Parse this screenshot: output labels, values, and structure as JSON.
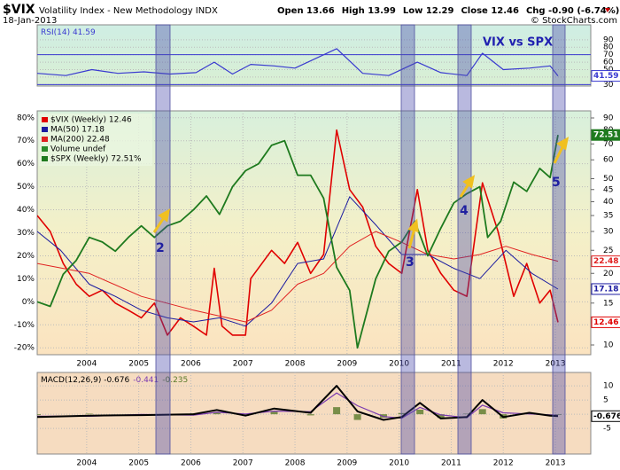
{
  "header": {
    "symbol": "$VIX",
    "name": "Volatility Index - New Methodology INDX",
    "date": "18-Jan-2013",
    "quote": [
      "Open 13.66",
      "High 13.99",
      "Low 12.29",
      "Close 12.46",
      "Chg -0.90 (-6.74%)"
    ],
    "credit": "© StockCharts.com"
  },
  "annotations": [
    "VIX vs SPX",
    "2",
    "3",
    "4",
    "5"
  ],
  "chart_data": [
    {
      "type": "line",
      "xlim": [
        2003.05,
        2013.68
      ],
      "ylim": [
        28,
        110
      ],
      "yticks": [
        30,
        40,
        50,
        60,
        70,
        80,
        90
      ],
      "ref_lines": [
        30,
        70
      ],
      "series": [
        {
          "name": "RSI(14) 41.59",
          "color": "#3a3ad0",
          "tag": true,
          "x": [
            2003.05,
            2003.6,
            2004.1,
            2004.6,
            2005.1,
            2005.6,
            2006.1,
            2006.45,
            2006.8,
            2007.15,
            2007.6,
            2008.0,
            2008.8,
            2009.3,
            2009.8,
            2010.35,
            2010.8,
            2011.3,
            2011.6,
            2012.0,
            2012.5,
            2012.9,
            2013.05
          ],
          "values": [
            45,
            42,
            50,
            45,
            47,
            44,
            46,
            60,
            44,
            57,
            55,
            52,
            78,
            45,
            42,
            60,
            46,
            42,
            72,
            50,
            52,
            55,
            41.59
          ]
        }
      ]
    },
    {
      "type": "line",
      "xlim": [
        2003.05,
        2013.68
      ],
      "xticks": [
        2004,
        2005,
        2006,
        2007,
        2008,
        2009,
        2010,
        2011,
        2012,
        2013
      ],
      "ylim": [
        -23,
        83
      ],
      "yticks": [
        {
          "value": 80,
          "label": "80%"
        },
        {
          "value": 70,
          "label": "70%"
        },
        {
          "value": 60,
          "label": "60%"
        },
        {
          "value": 50,
          "label": "50%"
        },
        {
          "value": 40,
          "label": "40%"
        },
        {
          "value": 30,
          "label": "30%"
        },
        {
          "value": 20,
          "label": "20%"
        },
        {
          "value": 10,
          "label": "10%"
        },
        {
          "value": 0,
          "label": "0%"
        },
        {
          "value": -10,
          "label": "-10%"
        },
        {
          "value": -20,
          "label": "-20%"
        }
      ],
      "y2lim": [
        9.1,
        96.4
      ],
      "y2log": true,
      "y2ticks": [
        90,
        80,
        70,
        60,
        50,
        45,
        40,
        35,
        30,
        25,
        20,
        15,
        10
      ],
      "legend_note": "Volume undef",
      "series": [
        {
          "name": "$VIX (Weekly) 12.46",
          "color": "#e00000",
          "axis": "y2",
          "tag": true,
          "width": 1.6,
          "x": [
            2003.05,
            2003.3,
            2003.55,
            2003.8,
            2004.05,
            2004.3,
            2004.55,
            2004.8,
            2005.05,
            2005.3,
            2005.55,
            2005.8,
            2006.05,
            2006.3,
            2006.45,
            2006.6,
            2006.8,
            2007.05,
            2007.15,
            2007.55,
            2007.8,
            2008.05,
            2008.3,
            2008.55,
            2008.8,
            2009.05,
            2009.3,
            2009.55,
            2009.8,
            2010.05,
            2010.35,
            2010.55,
            2010.8,
            2011.05,
            2011.3,
            2011.6,
            2011.9,
            2012.2,
            2012.45,
            2012.7,
            2012.9,
            2013.05
          ],
          "values": [
            35,
            30,
            22,
            18,
            16,
            17,
            15,
            14,
            13,
            15,
            11,
            13,
            12,
            11,
            21,
            12,
            11,
            11,
            19,
            25,
            22,
            27,
            20,
            24,
            80,
            45,
            38,
            26,
            22,
            20,
            45,
            25,
            20,
            17,
            16,
            48,
            30,
            16,
            22,
            15,
            17,
            12.46
          ]
        },
        {
          "name": "MA(50) 17.18",
          "color": "#1a1aa0",
          "axis": "y2",
          "tag": true,
          "width": 1,
          "x": [
            2003.05,
            2003.5,
            2004.05,
            2004.55,
            2005.05,
            2005.55,
            2006.05,
            2006.55,
            2007.05,
            2007.55,
            2008.05,
            2008.55,
            2009.05,
            2009.55,
            2010.05,
            2010.55,
            2011.05,
            2011.55,
            2012.05,
            2012.55,
            2013.05
          ],
          "values": [
            30,
            25,
            18,
            16,
            14,
            13,
            12.5,
            13,
            12,
            15,
            22,
            23,
            42,
            32,
            24,
            24,
            21,
            19,
            25,
            20,
            17.18
          ]
        },
        {
          "name": "MA(200) 22.48",
          "color": "#e02020",
          "axis": "y2",
          "tag": true,
          "width": 1,
          "x": [
            2003.05,
            2004.05,
            2005.05,
            2006.05,
            2007.05,
            2007.55,
            2008.05,
            2008.55,
            2009.05,
            2009.55,
            2010.05,
            2010.55,
            2011.05,
            2011.55,
            2012.05,
            2012.55,
            2013.05
          ],
          "values": [
            22,
            20,
            16,
            14,
            12.5,
            14,
            18,
            20,
            26,
            30,
            27,
            24,
            23,
            24,
            26,
            24,
            22.48
          ]
        },
        {
          "name": "$SPX (Weekly) 72.51%",
          "color": "#1e7a1e",
          "tag": true,
          "width": 1.8,
          "x": [
            2003.05,
            2003.3,
            2003.55,
            2003.8,
            2004.05,
            2004.3,
            2004.55,
            2004.8,
            2005.05,
            2005.3,
            2005.55,
            2005.8,
            2006.05,
            2006.3,
            2006.55,
            2006.8,
            2007.05,
            2007.3,
            2007.55,
            2007.8,
            2008.05,
            2008.3,
            2008.55,
            2008.8,
            2009.05,
            2009.2,
            2009.55,
            2009.8,
            2010.05,
            2010.3,
            2010.55,
            2010.8,
            2011.05,
            2011.3,
            2011.55,
            2011.7,
            2011.95,
            2012.2,
            2012.45,
            2012.7,
            2012.9,
            2013.05
          ],
          "values": [
            0,
            -2,
            12,
            18,
            28,
            26,
            22,
            28,
            33,
            28,
            33,
            35,
            40,
            46,
            38,
            50,
            57,
            60,
            68,
            70,
            55,
            55,
            45,
            15,
            5,
            -20,
            10,
            22,
            26,
            35,
            20,
            32,
            43,
            47,
            50,
            28,
            35,
            52,
            48,
            58,
            54,
            72.51
          ]
        }
      ]
    },
    {
      "type": "line",
      "xlim": [
        2003.05,
        2013.68
      ],
      "xticks": [
        2004,
        2005,
        2006,
        2007,
        2008,
        2009,
        2010,
        2011,
        2012,
        2013
      ],
      "ylim": [
        -14,
        14.7
      ],
      "yticks": [
        10,
        5,
        0,
        -5
      ],
      "series": [
        {
          "name": "-0.235",
          "color": "#5a7a2a",
          "type": "bar",
          "x": [
            2003.05,
            2004.05,
            2005.05,
            2006.05,
            2006.5,
            2007.05,
            2007.6,
            2008.3,
            2008.8,
            2009.2,
            2009.7,
            2010.05,
            2010.4,
            2010.8,
            2011.3,
            2011.6,
            2012.0,
            2012.5,
            2012.9,
            2013.05
          ],
          "values": [
            -0.3,
            0.2,
            -0.2,
            0.3,
            0.8,
            -0.6,
            0.9,
            -0.4,
            2.5,
            -2,
            -1.2,
            0.4,
            1.6,
            -1.3,
            0.2,
            1.8,
            -1.5,
            0.4,
            -0.3,
            -0.235
          ]
        },
        {
          "name": "-0.441",
          "color": "#7a3ab0",
          "width": 1.2,
          "x": [
            2003.05,
            2004.05,
            2005.05,
            2006.05,
            2006.5,
            2007.05,
            2007.6,
            2008.3,
            2008.8,
            2009.2,
            2009.7,
            2010.05,
            2010.4,
            2010.8,
            2011.3,
            2011.6,
            2012.0,
            2012.5,
            2012.9,
            2013.05
          ],
          "values": [
            -0.7,
            -0.7,
            -0.1,
            -0.3,
            0.7,
            0.1,
            1.1,
            0.9,
            7.5,
            3,
            -0.8,
            -1.4,
            2.4,
            -0.2,
            -1.2,
            3.2,
            0.5,
            0.1,
            -0.2,
            -0.441
          ]
        },
        {
          "name": "MACD(12,26,9) -0.676",
          "color": "#000000",
          "tag": true,
          "width": 2,
          "x": [
            2003.05,
            2004.05,
            2005.05,
            2006.05,
            2006.5,
            2007.05,
            2007.6,
            2008.3,
            2008.8,
            2009.2,
            2009.7,
            2010.05,
            2010.4,
            2010.8,
            2011.3,
            2011.6,
            2012.0,
            2012.5,
            2012.9,
            2013.05
          ],
          "values": [
            -1,
            -0.5,
            -0.3,
            0,
            1.5,
            -0.5,
            2,
            0.5,
            10,
            1,
            -2,
            -1,
            4,
            -1.5,
            -1,
            5,
            -1,
            0.5,
            -0.5,
            -0.676
          ]
        }
      ]
    }
  ]
}
